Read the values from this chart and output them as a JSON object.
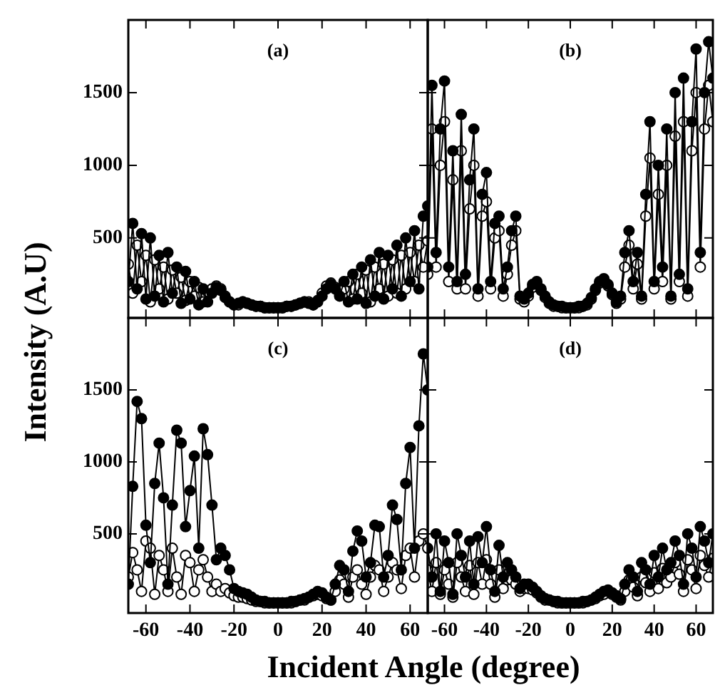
{
  "chart_data": [
    {
      "type": "line",
      "title": "(a)",
      "ylabel": "Intensity (A.U)",
      "tick_labels": "y",
      "marker": "circle",
      "line_style": "solid",
      "x": [
        -68,
        -66,
        -64,
        -62,
        -60,
        -58,
        -56,
        -54,
        -52,
        -50,
        -48,
        -46,
        -44,
        -42,
        -40,
        -38,
        -36,
        -34,
        -32,
        -30,
        -28,
        -26,
        -24,
        -22,
        -20,
        -18,
        -16,
        -14,
        -12,
        -10,
        -8,
        -6,
        -4,
        -2,
        0,
        2,
        4,
        6,
        8,
        10,
        12,
        14,
        16,
        18,
        20,
        22,
        24,
        26,
        28,
        30,
        32,
        34,
        36,
        38,
        40,
        42,
        44,
        46,
        48,
        50,
        52,
        54,
        56,
        58,
        60,
        62,
        64,
        66,
        68
      ],
      "xlim": [
        -68,
        68
      ],
      "xticks": [
        -60,
        -40,
        -20,
        0,
        20,
        40,
        60
      ],
      "ylim": [
        -50,
        2000
      ],
      "yticks": [
        500,
        1000,
        1500
      ],
      "series": [
        {
          "color": "#000000",
          "values": [
            200,
            600,
            150,
            530,
            80,
            500,
            100,
            380,
            60,
            400,
            120,
            300,
            50,
            270,
            80,
            200,
            40,
            150,
            60,
            120,
            160,
            140,
            90,
            60,
            40,
            50,
            60,
            50,
            40,
            30,
            30,
            20,
            20,
            20,
            20,
            20,
            30,
            30,
            40,
            50,
            60,
            50,
            40,
            60,
            100,
            150,
            180,
            150,
            100,
            200,
            60,
            250,
            80,
            300,
            50,
            350,
            100,
            400,
            80,
            380,
            150,
            450,
            100,
            500,
            200,
            550,
            150,
            650,
            720
          ]
        },
        {
          "color": "#ffffff",
          "values": [
            320,
            120,
            450,
            200,
            380,
            60,
            350,
            150,
            300,
            80,
            280,
            120,
            230,
            70,
            200,
            100,
            160,
            60,
            130,
            150,
            170,
            150,
            100,
            60,
            40,
            40,
            60,
            50,
            40,
            30,
            30,
            20,
            20,
            20,
            20,
            20,
            30,
            30,
            40,
            50,
            60,
            60,
            40,
            70,
            120,
            170,
            190,
            160,
            110,
            150,
            200,
            80,
            250,
            120,
            280,
            60,
            300,
            150,
            320,
            100,
            350,
            120,
            380,
            150,
            400,
            200,
            450,
            300,
            480
          ]
        }
      ]
    },
    {
      "type": "line",
      "title": "(b)",
      "tick_labels": false,
      "marker": "circle",
      "line_style": "solid",
      "x": [
        -68,
        -66,
        -64,
        -62,
        -60,
        -58,
        -56,
        -54,
        -52,
        -50,
        -48,
        -46,
        -44,
        -42,
        -40,
        -38,
        -36,
        -34,
        -32,
        -30,
        -28,
        -26,
        -24,
        -22,
        -20,
        -18,
        -16,
        -14,
        -12,
        -10,
        -8,
        -6,
        -4,
        -2,
        0,
        2,
        4,
        6,
        8,
        10,
        12,
        14,
        16,
        18,
        20,
        22,
        24,
        26,
        28,
        30,
        32,
        34,
        36,
        38,
        40,
        42,
        44,
        46,
        48,
        50,
        52,
        54,
        56,
        58,
        60,
        62,
        64,
        66,
        68
      ],
      "xlim": [
        -68,
        68
      ],
      "xticks": [
        -60,
        -40,
        -20,
        0,
        20,
        40,
        60
      ],
      "ylim": [
        -50,
        2000
      ],
      "yticks": [
        500,
        1000,
        1500
      ],
      "series": [
        {
          "color": "#000000",
          "values": [
            300,
            1550,
            400,
            1250,
            1580,
            300,
            1100,
            200,
            1350,
            250,
            900,
            1250,
            150,
            800,
            950,
            200,
            600,
            650,
            150,
            300,
            550,
            650,
            100,
            80,
            120,
            180,
            200,
            150,
            100,
            60,
            40,
            30,
            30,
            20,
            20,
            20,
            30,
            30,
            50,
            90,
            150,
            200,
            220,
            180,
            120,
            60,
            100,
            400,
            550,
            200,
            400,
            100,
            800,
            1300,
            200,
            1000,
            300,
            1250,
            100,
            1500,
            250,
            1600,
            150,
            1300,
            1800,
            400,
            1500,
            1850,
            1600
          ]
        },
        {
          "color": "#ffffff",
          "values": [
            250,
            1250,
            300,
            1000,
            1300,
            200,
            900,
            150,
            1100,
            150,
            700,
            1000,
            100,
            650,
            750,
            150,
            500,
            550,
            100,
            250,
            450,
            550,
            80,
            60,
            100,
            160,
            190,
            140,
            90,
            50,
            30,
            30,
            20,
            20,
            20,
            20,
            20,
            30,
            40,
            80,
            140,
            190,
            210,
            170,
            110,
            50,
            80,
            300,
            450,
            150,
            320,
            80,
            650,
            1050,
            150,
            800,
            200,
            1000,
            80,
            1200,
            200,
            1300,
            100,
            1100,
            1500,
            300,
            1250,
            1550,
            1300
          ]
        }
      ]
    },
    {
      "type": "line",
      "title": "(c)",
      "xlabel": "Incident Angle (degree)",
      "marker": "circle",
      "line_style": "solid",
      "x": [
        -68,
        -66,
        -64,
        -62,
        -60,
        -58,
        -56,
        -54,
        -52,
        -50,
        -48,
        -46,
        -44,
        -42,
        -40,
        -38,
        -36,
        -34,
        -32,
        -30,
        -28,
        -26,
        -24,
        -22,
        -20,
        -18,
        -16,
        -14,
        -12,
        -10,
        -8,
        -6,
        -4,
        -2,
        0,
        2,
        4,
        6,
        8,
        10,
        12,
        14,
        16,
        18,
        20,
        22,
        24,
        26,
        28,
        30,
        32,
        34,
        36,
        38,
        40,
        42,
        44,
        46,
        48,
        50,
        52,
        54,
        56,
        58,
        60,
        62,
        64,
        66,
        68
      ],
      "xlim": [
        -68,
        68
      ],
      "xticks": [
        -60,
        -40,
        -20,
        0,
        20,
        40,
        60
      ],
      "ylim": [
        -50,
        2000
      ],
      "yticks": [
        500,
        1000,
        1500
      ],
      "series": [
        {
          "color": "#000000",
          "values": [
            150,
            830,
            1420,
            1300,
            560,
            300,
            850,
            1130,
            750,
            150,
            700,
            1220,
            1130,
            550,
            800,
            1040,
            400,
            1230,
            1050,
            700,
            320,
            400,
            350,
            250,
            120,
            100,
            90,
            80,
            60,
            40,
            30,
            30,
            20,
            20,
            20,
            20,
            20,
            30,
            30,
            40,
            50,
            60,
            80,
            100,
            90,
            60,
            40,
            150,
            280,
            250,
            100,
            380,
            520,
            450,
            200,
            300,
            560,
            550,
            200,
            350,
            700,
            600,
            250,
            850,
            1100,
            400,
            1250,
            1750,
            1500
          ]
        },
        {
          "color": "#ffffff",
          "values": [
            200,
            370,
            250,
            100,
            450,
            400,
            80,
            350,
            250,
            100,
            400,
            200,
            80,
            350,
            300,
            100,
            250,
            320,
            200,
            100,
            150,
            100,
            120,
            90,
            70,
            60,
            60,
            50,
            40,
            30,
            30,
            20,
            20,
            20,
            20,
            20,
            20,
            20,
            30,
            40,
            40,
            60,
            70,
            80,
            70,
            50,
            40,
            100,
            180,
            150,
            60,
            200,
            250,
            150,
            80,
            200,
            280,
            250,
            100,
            200,
            300,
            250,
            120,
            350,
            400,
            200,
            450,
            500,
            400
          ]
        }
      ]
    },
    {
      "type": "line",
      "title": "(d)",
      "tick_labels": "x",
      "marker": "circle",
      "line_style": "solid",
      "x": [
        -68,
        -66,
        -64,
        -62,
        -60,
        -58,
        -56,
        -54,
        -52,
        -50,
        -48,
        -46,
        -44,
        -42,
        -40,
        -38,
        -36,
        -34,
        -32,
        -30,
        -28,
        -26,
        -24,
        -22,
        -20,
        -18,
        -16,
        -14,
        -12,
        -10,
        -8,
        -6,
        -4,
        -2,
        0,
        2,
        4,
        6,
        8,
        10,
        12,
        14,
        16,
        18,
        20,
        22,
        24,
        26,
        28,
        30,
        32,
        34,
        36,
        38,
        40,
        42,
        44,
        46,
        48,
        50,
        52,
        54,
        56,
        58,
        60,
        62,
        64,
        66,
        68
      ],
      "xlim": [
        -68,
        68
      ],
      "xticks": [
        -60,
        -40,
        -20,
        0,
        20,
        40,
        60
      ],
      "ylim": [
        -50,
        2000
      ],
      "yticks": [
        500,
        1000,
        1500
      ],
      "series": [
        {
          "color": "#000000",
          "values": [
            400,
            200,
            500,
            100,
            450,
            300,
            80,
            500,
            350,
            200,
            450,
            150,
            480,
            300,
            550,
            250,
            100,
            420,
            200,
            300,
            250,
            200,
            120,
            150,
            150,
            130,
            100,
            70,
            50,
            40,
            30,
            30,
            20,
            20,
            20,
            20,
            20,
            30,
            30,
            40,
            60,
            80,
            100,
            110,
            90,
            70,
            50,
            150,
            250,
            200,
            100,
            300,
            250,
            150,
            350,
            200,
            400,
            250,
            300,
            450,
            350,
            150,
            500,
            400,
            200,
            550,
            450,
            300,
            500
          ]
        },
        {
          "color": "#ffffff",
          "values": [
            250,
            100,
            300,
            80,
            250,
            150,
            60,
            300,
            200,
            100,
            280,
            80,
            300,
            150,
            320,
            150,
            60,
            250,
            120,
            180,
            180,
            150,
            100,
            120,
            120,
            110,
            90,
            60,
            40,
            40,
            30,
            20,
            20,
            20,
            20,
            20,
            20,
            20,
            30,
            40,
            50,
            70,
            80,
            100,
            80,
            60,
            40,
            100,
            180,
            130,
            70,
            200,
            160,
            100,
            230,
            120,
            260,
            160,
            200,
            300,
            220,
            100,
            320,
            250,
            120,
            350,
            280,
            200,
            330
          ]
        }
      ]
    }
  ]
}
